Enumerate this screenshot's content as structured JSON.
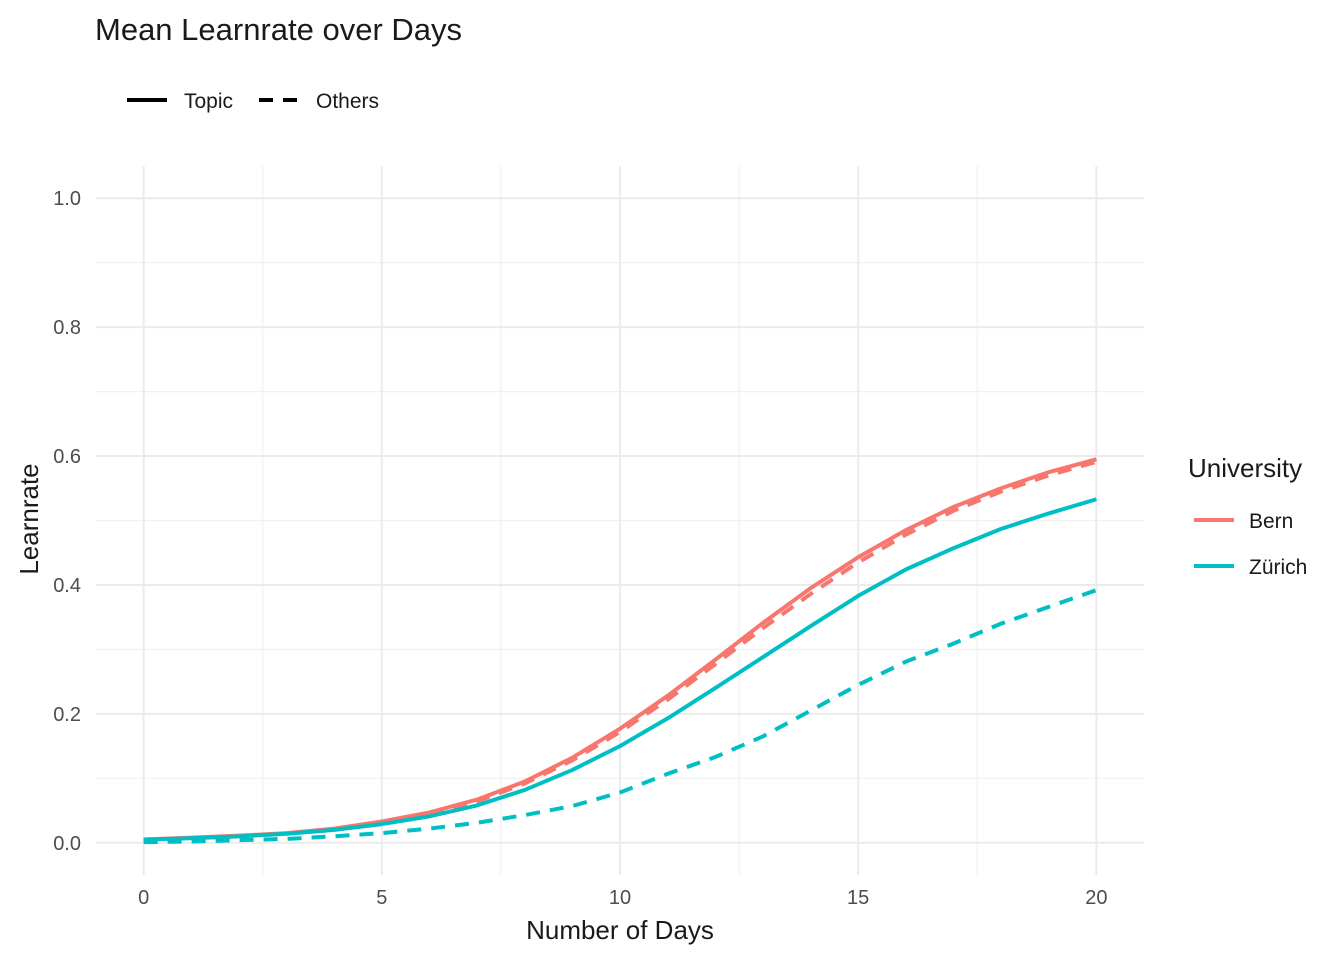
{
  "chart_data": {
    "type": "line",
    "title": "Mean Learnrate over Days",
    "xlabel": "Number of Days",
    "ylabel": "Learnrate",
    "xlim": [
      -1,
      21
    ],
    "ylim": [
      -0.05,
      1.05
    ],
    "xticks": [
      0,
      5,
      10,
      15,
      20
    ],
    "yticks": [
      0.0,
      0.2,
      0.4,
      0.6,
      0.8,
      1.0
    ],
    "x_tick_labels": [
      "0",
      "5",
      "10",
      "15",
      "20"
    ],
    "y_tick_labels": [
      "0.0",
      "0.2",
      "0.4",
      "0.6",
      "0.8",
      "1.0"
    ],
    "grid": true,
    "legend_colour": {
      "title": "University",
      "position": "right",
      "items": [
        {
          "label": "Bern",
          "color": "#F8766D"
        },
        {
          "label": "Zürich",
          "color": "#00BFC4"
        }
      ]
    },
    "legend_linetype": {
      "position": "top-left",
      "items": [
        {
          "label": "Topic",
          "linetype": "solid"
        },
        {
          "label": "Others",
          "linetype": "dashed"
        }
      ]
    },
    "x": [
      0,
      1,
      2,
      3,
      4,
      5,
      6,
      7,
      8,
      9,
      10,
      11,
      12,
      13,
      14,
      15,
      16,
      17,
      18,
      19,
      20
    ],
    "series": [
      {
        "name": "Bern",
        "group": "Topic",
        "color": "#F8766D",
        "linetype": "solid",
        "values": [
          0.005,
          0.008,
          0.011,
          0.015,
          0.022,
          0.033,
          0.047,
          0.067,
          0.095,
          0.132,
          0.177,
          0.228,
          0.284,
          0.341,
          0.395,
          0.443,
          0.485,
          0.521,
          0.55,
          0.575,
          0.595
        ]
      },
      {
        "name": "Bern",
        "group": "Others",
        "color": "#F8766D",
        "linetype": "dashed",
        "values": [
          0.004,
          0.007,
          0.01,
          0.014,
          0.02,
          0.031,
          0.045,
          0.064,
          0.092,
          0.128,
          0.172,
          0.222,
          0.277,
          0.333,
          0.386,
          0.435,
          0.478,
          0.515,
          0.545,
          0.57,
          0.591
        ]
      },
      {
        "name": "Zürich",
        "group": "Topic",
        "color": "#00BFC4",
        "linetype": "solid",
        "values": [
          0.005,
          0.007,
          0.01,
          0.014,
          0.02,
          0.029,
          0.041,
          0.058,
          0.082,
          0.113,
          0.15,
          0.193,
          0.24,
          0.288,
          0.336,
          0.383,
          0.424,
          0.457,
          0.487,
          0.511,
          0.533
        ]
      },
      {
        "name": "Zürich",
        "group": "Others",
        "color": "#00BFC4",
        "linetype": "dashed",
        "values": [
          0.001,
          0.002,
          0.004,
          0.006,
          0.01,
          0.015,
          0.022,
          0.031,
          0.043,
          0.057,
          0.078,
          0.107,
          0.133,
          0.165,
          0.205,
          0.245,
          0.281,
          0.309,
          0.34,
          0.366,
          0.392
        ]
      }
    ]
  }
}
